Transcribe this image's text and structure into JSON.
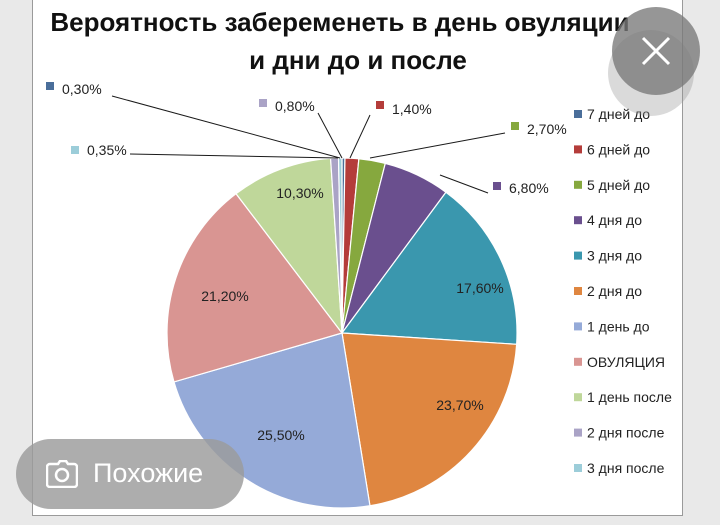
{
  "title_line1": "Вероятность забеременеть в день овуляции",
  "title_line2": "и дни до и после",
  "chart_data": {
    "type": "pie",
    "title": "Вероятность забеременеть в день овуляции и дни до и после",
    "labels": [
      "7 дней до",
      "6 дней до",
      "5 дней до",
      "4 дня до",
      "3 дня до",
      "2 дня до",
      "1 день до",
      "ОВУЛЯЦИЯ",
      "1 день после",
      "2 дня после",
      "3 дня после"
    ],
    "values": [
      0.3,
      1.4,
      2.7,
      6.8,
      17.6,
      23.7,
      25.5,
      21.2,
      10.3,
      0.8,
      0.35
    ],
    "value_labels": [
      "0,30%",
      "1,40%",
      "2,70%",
      "6,80%",
      "17,60%",
      "23,70%",
      "25,50%",
      "21,20%",
      "10,30%",
      "0,80%",
      "0,35%"
    ],
    "colors": [
      "#4a6e9a",
      "#b43c3a",
      "#86a83e",
      "#6a4f8e",
      "#3a97ae",
      "#df8640",
      "#95aad8",
      "#d99592",
      "#bfd79a",
      "#aaa3c6",
      "#9ccdd9"
    ],
    "legend_position": "right"
  },
  "overlay": {
    "similar_label": "Похожие",
    "close_icon": "close-icon",
    "similar_icon": "visual-search-icon"
  }
}
